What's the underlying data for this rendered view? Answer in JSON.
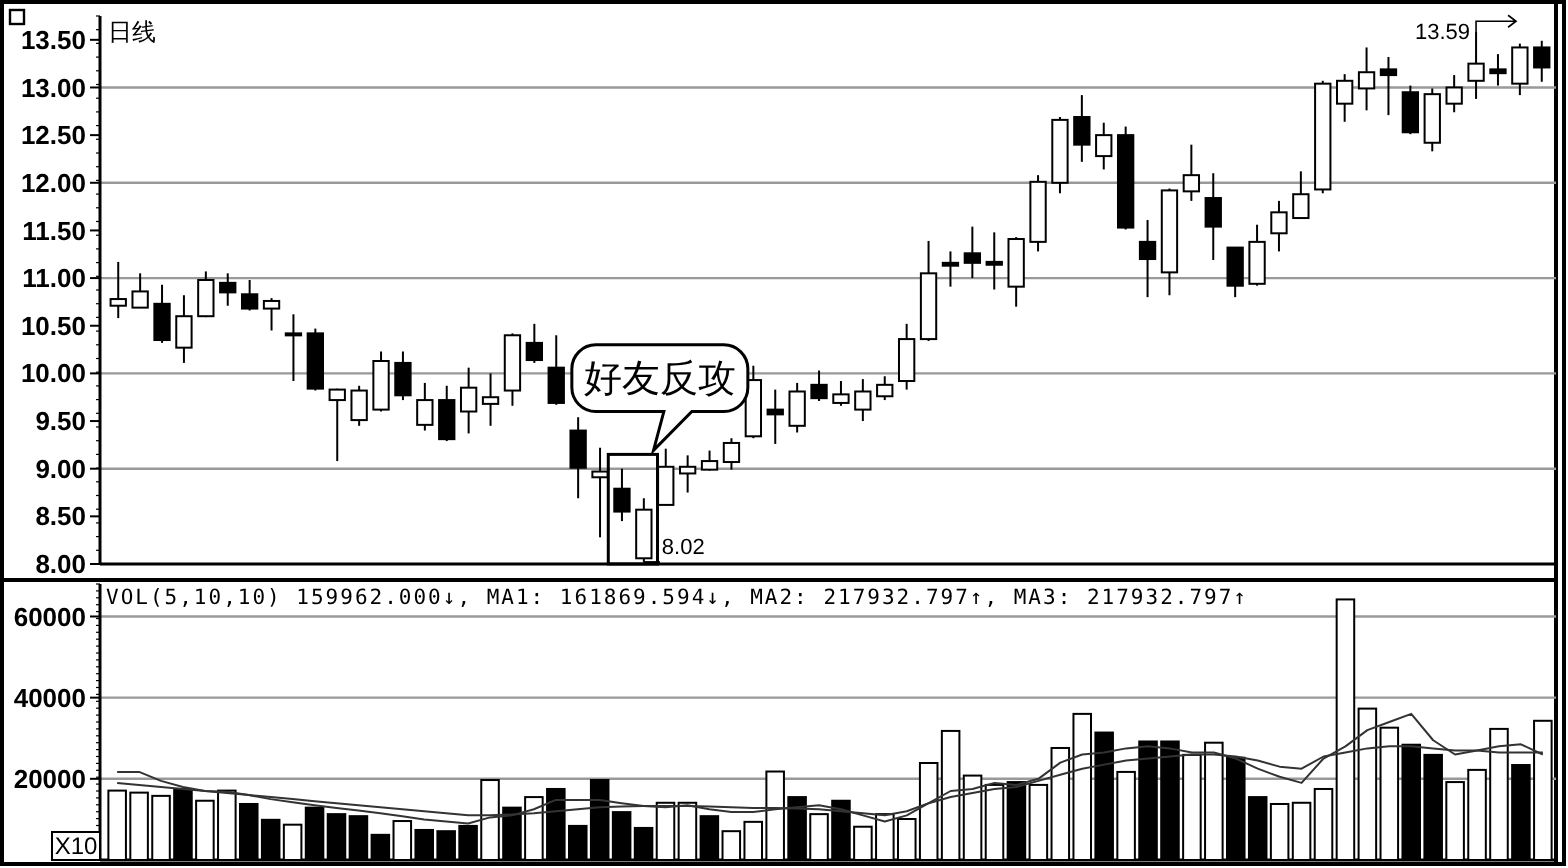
{
  "chart_data": [
    {
      "type": "candlestick",
      "title": "日线",
      "categories": [
        null,
        null,
        null,
        null,
        null,
        null,
        null,
        null,
        null,
        null,
        null,
        null,
        null,
        null,
        null,
        null,
        null,
        null,
        null,
        null,
        null,
        null,
        null,
        null,
        null,
        null,
        null,
        null,
        null,
        null,
        null,
        null,
        null,
        null,
        null,
        null,
        null,
        null,
        null,
        null,
        null,
        null,
        null,
        null,
        null,
        null,
        null,
        null,
        null,
        null,
        null,
        null,
        null,
        null,
        null,
        null,
        null,
        null,
        null,
        null,
        null,
        null,
        null,
        null,
        null,
        null
      ],
      "ohlc": [
        [
          10.71,
          11.17,
          10.58,
          10.78
        ],
        [
          10.69,
          11.05,
          10.69,
          10.86
        ],
        [
          10.73,
          10.93,
          10.32,
          10.35
        ],
        [
          10.27,
          10.82,
          10.11,
          10.6
        ],
        [
          10.6,
          11.07,
          10.59,
          10.98
        ],
        [
          10.95,
          11.05,
          10.71,
          10.85
        ],
        [
          10.83,
          10.98,
          10.66,
          10.68
        ],
        [
          10.68,
          10.79,
          10.45,
          10.76
        ],
        [
          10.41,
          10.62,
          9.92,
          10.42
        ],
        [
          10.42,
          10.47,
          9.82,
          9.84
        ],
        [
          9.72,
          9.84,
          9.08,
          9.83
        ],
        [
          9.51,
          9.87,
          9.45,
          9.82
        ],
        [
          9.62,
          10.23,
          9.6,
          10.13
        ],
        [
          10.11,
          10.23,
          9.72,
          9.77
        ],
        [
          9.46,
          9.9,
          9.4,
          9.72
        ],
        [
          9.72,
          9.87,
          9.29,
          9.31
        ],
        [
          9.6,
          10.06,
          9.37,
          9.85
        ],
        [
          9.68,
          10.0,
          9.45,
          9.75
        ],
        [
          9.82,
          10.42,
          9.66,
          10.4
        ],
        [
          10.32,
          10.52,
          10.11,
          10.14
        ],
        [
          10.06,
          10.4,
          9.67,
          9.69
        ],
        [
          9.4,
          9.54,
          8.69,
          9.01
        ],
        [
          8.91,
          9.22,
          8.28,
          8.97
        ],
        [
          8.79,
          9.0,
          8.45,
          8.55
        ],
        [
          8.06,
          8.69,
          8.02,
          8.57
        ],
        [
          8.62,
          9.21,
          8.62,
          9.02
        ],
        [
          8.95,
          9.14,
          8.75,
          9.02
        ],
        [
          8.99,
          9.19,
          8.98,
          9.08
        ],
        [
          9.07,
          9.32,
          8.99,
          9.27
        ],
        [
          9.34,
          10.08,
          9.32,
          9.93
        ],
        [
          9.62,
          9.83,
          9.26,
          9.57
        ],
        [
          9.45,
          9.9,
          9.38,
          9.81
        ],
        [
          9.88,
          10.03,
          9.71,
          9.74
        ],
        [
          9.69,
          9.92,
          9.66,
          9.78
        ],
        [
          9.62,
          9.94,
          9.5,
          9.81
        ],
        [
          9.76,
          9.97,
          9.72,
          9.88
        ],
        [
          9.92,
          10.52,
          9.83,
          10.36
        ],
        [
          10.36,
          11.39,
          10.34,
          11.05
        ],
        [
          11.16,
          11.28,
          10.91,
          11.13
        ],
        [
          11.26,
          11.54,
          11.0,
          11.16
        ],
        [
          11.17,
          11.48,
          10.88,
          11.14
        ],
        [
          10.91,
          11.43,
          10.7,
          11.41
        ],
        [
          11.38,
          12.08,
          11.28,
          12.01
        ],
        [
          12.0,
          12.69,
          11.89,
          12.66
        ],
        [
          12.69,
          12.92,
          12.22,
          12.4
        ],
        [
          12.28,
          12.63,
          12.14,
          12.5
        ],
        [
          12.5,
          12.59,
          11.51,
          11.53
        ],
        [
          11.38,
          11.61,
          10.8,
          11.2
        ],
        [
          11.06,
          11.94,
          10.82,
          11.92
        ],
        [
          11.91,
          12.4,
          11.81,
          12.08
        ],
        [
          11.84,
          12.1,
          11.19,
          11.54
        ],
        [
          11.32,
          11.32,
          10.8,
          10.92
        ],
        [
          10.94,
          11.56,
          10.92,
          11.38
        ],
        [
          11.47,
          11.81,
          11.28,
          11.69
        ],
        [
          11.63,
          12.12,
          11.63,
          11.88
        ],
        [
          11.93,
          13.07,
          11.89,
          13.04
        ],
        [
          12.83,
          13.14,
          12.64,
          13.07
        ],
        [
          12.99,
          13.42,
          12.76,
          13.16
        ],
        [
          13.19,
          13.32,
          12.71,
          13.13
        ],
        [
          12.95,
          13.02,
          12.51,
          12.53
        ],
        [
          12.42,
          12.99,
          12.33,
          12.93
        ],
        [
          12.83,
          13.13,
          12.74,
          13.0
        ],
        [
          13.07,
          13.59,
          12.88,
          13.25
        ],
        [
          13.19,
          13.35,
          13.02,
          13.15
        ],
        [
          13.04,
          13.46,
          12.92,
          13.42
        ],
        [
          13.42,
          13.49,
          13.06,
          13.21
        ]
      ],
      "ylim": [
        8,
        13.75
      ],
      "yticks": [
        {
          "value": 8,
          "label": "8.00"
        },
        {
          "value": 8.5,
          "label": "8.50"
        },
        {
          "value": 9,
          "label": "9.00"
        },
        {
          "value": 9.5,
          "label": "9.50"
        },
        {
          "value": 10,
          "label": "10.00"
        },
        {
          "value": 10.5,
          "label": "10.50"
        },
        {
          "value": 11,
          "label": "11.00"
        },
        {
          "value": 11.5,
          "label": "11.50"
        },
        {
          "value": 12,
          "label": "12.00"
        },
        {
          "value": 12.5,
          "label": "12.50"
        },
        {
          "value": 13,
          "label": "13.00"
        },
        {
          "value": 13.5,
          "label": "13.50"
        }
      ],
      "grid": "y",
      "tick_labels": "y",
      "annotations": [
        "13.59",
        "8.02",
        "好友反攻"
      ]
    },
    {
      "type": "bar",
      "title": "VOL(5,10,10) 159962.000↓, MA1: 161869.594↓, MA2: 217932.797↑, MA3: 217932.797↑",
      "categories": [
        null,
        null,
        null,
        null,
        null,
        null,
        null,
        null,
        null,
        null,
        null,
        null,
        null,
        null,
        null,
        null,
        null,
        null,
        null,
        null,
        null,
        null,
        null,
        null,
        null,
        null,
        null,
        null,
        null,
        null,
        null,
        null,
        null,
        null,
        null,
        null,
        null,
        null,
        null,
        null,
        null,
        null,
        null,
        null,
        null,
        null,
        null,
        null,
        null,
        null,
        null,
        null,
        null,
        null,
        null,
        null,
        null,
        null,
        null,
        null,
        null,
        null,
        null,
        null,
        null,
        null
      ],
      "series": [
        {
          "values": [
            17100,
            16600,
            15800,
            17500,
            14600,
            17100,
            13800,
            9900,
            8700,
            12900,
            11300,
            10800,
            6200,
            9600,
            7400,
            7100,
            8400,
            19700,
            12900,
            15500,
            17500,
            8400,
            19700,
            11800,
            7900,
            14100,
            14100,
            10800,
            7100,
            9400,
            21800,
            15500,
            11300,
            14600,
            8200,
            11300,
            10100,
            23900,
            31800,
            20800,
            18500,
            19200,
            18500,
            27600,
            36000,
            31400,
            21700,
            29200,
            29200,
            25900,
            28900,
            25200,
            15500,
            13800,
            14100,
            17500,
            64200,
            37300,
            32600,
            28400,
            25900,
            19200,
            22200,
            32300,
            23400,
            34300
          ],
          "colors": [
            "#ffffff",
            "#ffffff",
            "#ffffff",
            "#000000",
            "#ffffff",
            "#ffffff",
            "#000000",
            "#000000",
            "#ffffff",
            "#000000",
            "#000000",
            "#000000",
            "#000000",
            "#ffffff",
            "#000000",
            "#000000",
            "#000000",
            "#ffffff",
            "#000000",
            "#ffffff",
            "#000000",
            "#000000",
            "#000000",
            "#000000",
            "#000000",
            "#ffffff",
            "#ffffff",
            "#000000",
            "#ffffff",
            "#ffffff",
            "#ffffff",
            "#000000",
            "#ffffff",
            "#000000",
            "#ffffff",
            "#ffffff",
            "#ffffff",
            "#ffffff",
            "#ffffff",
            "#ffffff",
            "#ffffff",
            "#000000",
            "#ffffff",
            "#ffffff",
            "#ffffff",
            "#000000",
            "#ffffff",
            "#000000",
            "#000000",
            "#ffffff",
            "#ffffff",
            "#000000",
            "#000000",
            "#ffffff",
            "#ffffff",
            "#ffffff",
            "#ffffff",
            "#ffffff",
            "#ffffff",
            "#000000",
            "#000000",
            "#ffffff",
            "#ffffff",
            "#ffffff",
            "#000000",
            "#ffffff"
          ]
        },
        {
          "type": "line",
          "color": "#333333",
          "values": [
            21700,
            21700,
            19500,
            18000,
            17000,
            16800,
            16000,
            15000,
            14200,
            13500,
            12800,
            12200,
            11500,
            10800,
            10000,
            9500,
            9000,
            10500,
            11000,
            12500,
            14800,
            14800,
            14800,
            14000,
            13300,
            13000,
            13500,
            12500,
            11800,
            11800,
            12500,
            13000,
            13500,
            12500,
            11000,
            9500,
            11000,
            14000,
            17000,
            17500,
            19000,
            18500,
            20000,
            24000,
            26000,
            26500,
            27500,
            28000,
            27500,
            26500,
            26500,
            25000,
            22500,
            20500,
            19000,
            25000,
            28000,
            32000,
            34000,
            36000,
            29500,
            26000,
            27000,
            28000,
            28500,
            26000
          ]
        },
        {
          "type": "line",
          "color": "#333333",
          "values": [
            19000,
            18500,
            18000,
            17500,
            17000,
            16500,
            16000,
            15500,
            15000,
            14500,
            14000,
            13500,
            13000,
            12500,
            12000,
            11500,
            11000,
            11000,
            11200,
            11500,
            12000,
            12500,
            13000,
            13200,
            13300,
            13300,
            13300,
            13200,
            13000,
            12800,
            12800,
            12700,
            12500,
            12000,
            11500,
            11000,
            12000,
            14000,
            15500,
            16500,
            17500,
            18000,
            19500,
            21000,
            22500,
            23500,
            24500,
            25000,
            25500,
            26000,
            26000,
            25500,
            24500,
            23000,
            22500,
            25500,
            26500,
            27500,
            28000,
            28000,
            27500,
            27000,
            27000,
            26500,
            26500,
            26500
          ]
        }
      ],
      "ylim": [
        0,
        68000
      ],
      "yticks": [
        20000,
        40000,
        60000
      ],
      "grid": "y",
      "tick_labels": "y",
      "annotations": [
        "X10"
      ]
    }
  ]
}
